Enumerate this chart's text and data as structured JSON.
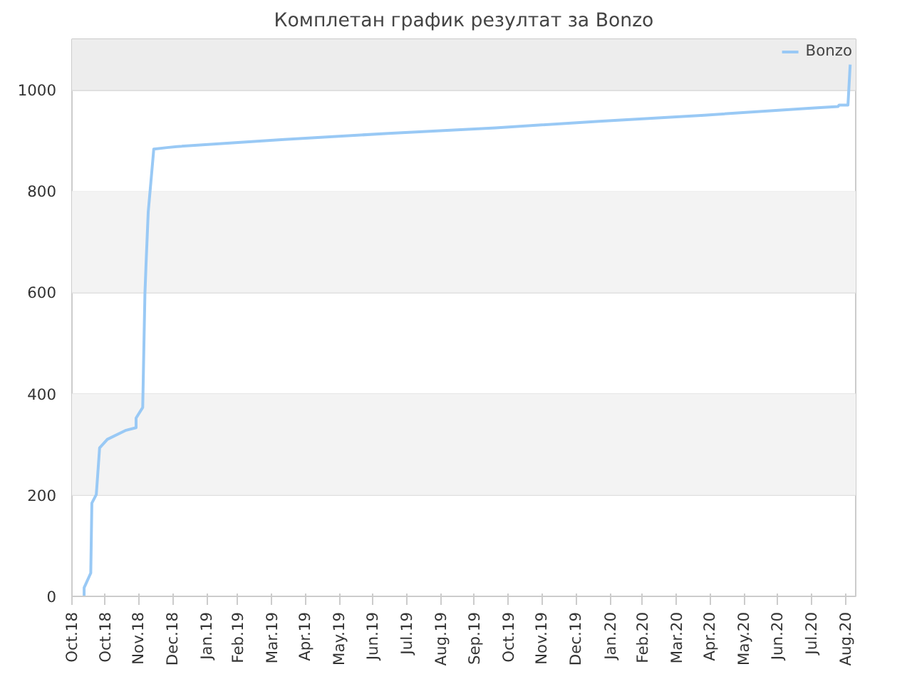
{
  "chart_data": {
    "type": "line",
    "title": "Комплетан график резултат за Bonzo",
    "x": [
      "2018-10-12",
      "2018-10-12",
      "2018-10-18",
      "2018-10-19",
      "2018-10-23",
      "2018-10-24",
      "2018-10-26",
      "2018-11-02",
      "2018-11-19",
      "2018-11-28",
      "2018-11-28",
      "2018-12-04",
      "2018-12-06",
      "2018-12-07",
      "2018-12-09",
      "2018-12-12",
      "2018-12-14",
      "2018-12-26",
      "2019-01-04",
      "2019-04-11",
      "2019-07-14",
      "2019-10-19",
      "2020-01-21",
      "2020-04-25",
      "2020-07-31",
      "2020-08-24",
      "2020-08-25",
      "2020-09-02",
      "2020-09-03",
      "2020-09-04"
    ],
    "series": [
      {
        "name": "Bonzo",
        "color": "#99c9f5",
        "values": [
          0,
          17,
          46,
          184,
          201,
          231,
          293,
          310,
          328,
          333,
          352,
          373,
          597,
          655,
          759,
          833,
          883,
          886,
          888,
          902,
          914,
          925,
          938,
          950,
          964,
          967,
          970,
          970,
          1010,
          1050
        ]
      }
    ],
    "xlim": [
      "2018-10-01",
      "2020-09-09"
    ],
    "xticks": [
      {
        "value": "2018-10-01",
        "label": "Oct.18"
      },
      {
        "value": "2018-10-31",
        "label": "Oct.18"
      },
      {
        "value": "2018-11-30",
        "label": "Nov.18"
      },
      {
        "value": "2018-12-31",
        "label": "Dec.18"
      },
      {
        "value": "2019-01-31",
        "label": "Jan.19"
      },
      {
        "value": "2019-02-28",
        "label": "Feb.19"
      },
      {
        "value": "2019-03-31",
        "label": "Mar.19"
      },
      {
        "value": "2019-04-30",
        "label": "Apr.19"
      },
      {
        "value": "2019-05-31",
        "label": "May.19"
      },
      {
        "value": "2019-06-30",
        "label": "Jun.19"
      },
      {
        "value": "2019-07-31",
        "label": "Jul.19"
      },
      {
        "value": "2019-08-31",
        "label": "Aug.19"
      },
      {
        "value": "2019-09-30",
        "label": "Sep.19"
      },
      {
        "value": "2019-10-31",
        "label": "Oct.19"
      },
      {
        "value": "2019-11-30",
        "label": "Nov.19"
      },
      {
        "value": "2019-12-31",
        "label": "Dec.19"
      },
      {
        "value": "2020-01-31",
        "label": "Jan.20"
      },
      {
        "value": "2020-02-29",
        "label": "Feb.20"
      },
      {
        "value": "2020-03-31",
        "label": "Mar.20"
      },
      {
        "value": "2020-04-30",
        "label": "Apr.20"
      },
      {
        "value": "2020-05-31",
        "label": "May.20"
      },
      {
        "value": "2020-06-30",
        "label": "Jun.20"
      },
      {
        "value": "2020-07-31",
        "label": "Jul.20"
      },
      {
        "value": "2020-08-31",
        "label": "Aug.20"
      }
    ],
    "ylim": [
      0,
      1100
    ],
    "yticks": [
      0,
      200,
      400,
      600,
      800,
      1000
    ],
    "bands": [
      {
        "axis": "y",
        "from": 200,
        "to": 400,
        "color": "#f3f3f3"
      },
      {
        "axis": "y",
        "from": 600,
        "to": 800,
        "color": "#f3f3f3"
      },
      {
        "axis": "y",
        "from": 1000,
        "to": 1100,
        "color": "#ededed"
      }
    ],
    "grid": "y",
    "legend": "top right",
    "marker": "none",
    "line_style": "solid"
  }
}
